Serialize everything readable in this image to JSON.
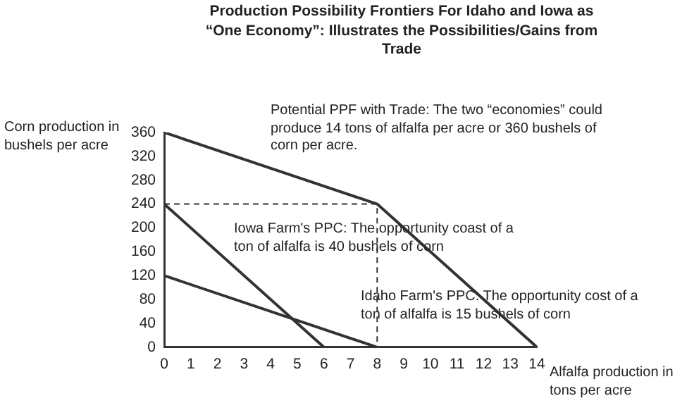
{
  "chart_data": {
    "type": "line",
    "title": "Production Possibility Frontiers For Idaho and Iowa as “One Economy”: Illustrates the Possibilities/Gains from Trade",
    "xlabel": "Alfalfa production in tons per acre",
    "ylabel": "Corn production in bushels per acre",
    "series": [
      {
        "color": "#333333",
        "x": [
          0,
          8,
          14
        ],
        "values": [
          360,
          240,
          0
        ]
      },
      {
        "color": "#333333",
        "x": [
          0,
          6
        ],
        "values": [
          240,
          0
        ]
      },
      {
        "color": "#333333",
        "x": [
          0,
          8
        ],
        "values": [
          120,
          0
        ]
      },
      {
        "color": "#333333",
        "x": [
          0,
          8,
          8
        ],
        "values": [
          240,
          240,
          0
        ],
        "line_style": "dashed"
      }
    ],
    "xlim": [
      0,
      14
    ],
    "xticks": [
      0,
      1,
      2,
      3,
      4,
      5,
      6,
      7,
      8,
      9,
      10,
      11,
      12,
      13,
      14
    ],
    "ylim": [
      0,
      360
    ],
    "yticks": [
      0,
      40,
      80,
      120,
      160,
      200,
      240,
      280,
      320,
      360
    ],
    "grid": false,
    "legend": false,
    "marker": "none",
    "line_style": "solid",
    "annotations": [
      "Potential PPF with Trade:  The two “economies” could produce 14 tons of alfalfa per acre or 360 bushels of corn per acre.",
      "Iowa Farm's PPC: The opportunity coast of a ton of alfalfa is 40 bushels of corn",
      "Idaho Farm's PPC: The opportunity cost of a ton of alfalfa is 15 bushels of corn"
    ]
  }
}
